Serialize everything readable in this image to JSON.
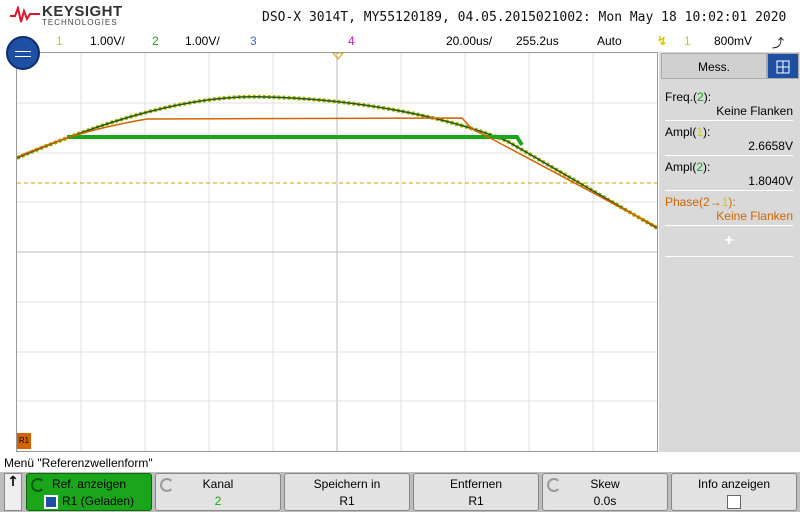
{
  "brand": {
    "name": "KEYSIGHT",
    "sub": "TECHNOLOGIES"
  },
  "header": {
    "title": "DSO-X 3014T, MY55120189, 04.05.2015021002: Mon May 18 10:02:01 2020"
  },
  "channels": {
    "ch1_num": "1",
    "ch1_scale": "1.00V/",
    "ch2_num": "2",
    "ch2_scale": "1.00V/",
    "ch3_num": "3",
    "ch4_num": "4",
    "timebase": "20.00us/",
    "delay": "255.2us",
    "trigger_mode": "Auto",
    "trigger_ch": "1",
    "trigger_level": "800mV"
  },
  "colors": {
    "ch1": "#d8c800",
    "ch2": "#1aa51a",
    "ch3": "#3a66cc",
    "ch4": "#b020b0",
    "ref": "#d26400",
    "accent": "#1f4fa3"
  },
  "side_panel": {
    "tab_label": "Mess.",
    "measurements": [
      {
        "label_pre": "Freq.(",
        "ch": "2",
        "label_post": "):",
        "value": "Keine Flanken"
      },
      {
        "label_pre": "Ampl(",
        "ch": "1",
        "label_post": "):",
        "value": "2.6658V"
      },
      {
        "label_pre": "Ampl(",
        "ch": "2",
        "label_post": "):",
        "value": "1.8040V"
      },
      {
        "label_pre": "Phase(2→",
        "ch": "1",
        "label_post": "):",
        "value": "Keine Flanken"
      }
    ],
    "add": "+"
  },
  "menu": {
    "title": "Menü \"Referenzwellenform\""
  },
  "softkeys": [
    {
      "l1": "Ref. anzeigen",
      "l2": "R1 (Geladen)"
    },
    {
      "l1": "Kanal",
      "l2": "2"
    },
    {
      "l1": "Speichern in",
      "l2": "R1"
    },
    {
      "l1": "Entfernen",
      "l2": "R1"
    },
    {
      "l1": "Skew",
      "l2": "0.0s"
    },
    {
      "l1": "Info anzeigen",
      "l2": ""
    }
  ],
  "ground_marker": "R1"
}
